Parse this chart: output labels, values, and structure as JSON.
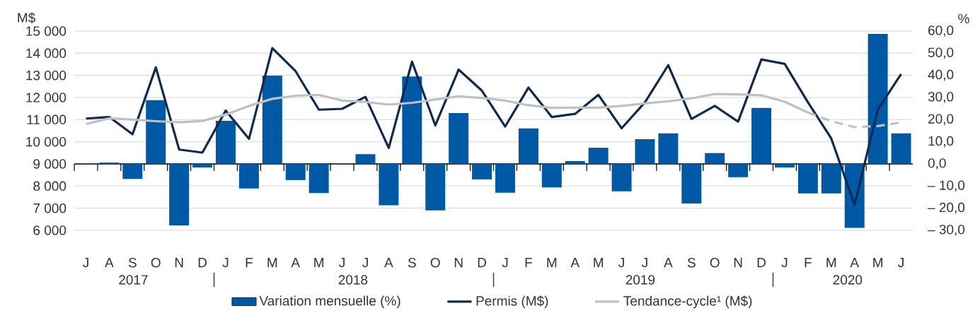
{
  "chart_data": {
    "type": "bar",
    "categories": [
      "J",
      "A",
      "S",
      "O",
      "N",
      "D",
      "J",
      "F",
      "M",
      "A",
      "M",
      "J",
      "J",
      "A",
      "S",
      "O",
      "N",
      "D",
      "J",
      "F",
      "M",
      "A",
      "M",
      "J",
      "J",
      "A",
      "S",
      "O",
      "N",
      "D",
      "J",
      "F",
      "M",
      "A",
      "M",
      "J"
    ],
    "x2lim": [
      "2017-07-01",
      "2020-07-01"
    ],
    "x2ticks": [
      {
        "value": "2017-09-17",
        "label": "2017"
      },
      {
        "value": "2018-01-01",
        "label": null
      },
      {
        "value": "2018-06-30",
        "label": "2018"
      },
      {
        "value": "2019-01-01",
        "label": null
      },
      {
        "value": "2019-07-10",
        "label": "2019"
      },
      {
        "value": "2020-01-01",
        "label": null
      },
      {
        "value": "2020-04-07",
        "label": "2020"
      }
    ],
    "ylabel": "M$",
    "y2label": "%",
    "ylim": [
      6000,
      15000
    ],
    "yticks": [
      {
        "value": 6000,
        "label": "6 000"
      },
      {
        "value": 7000,
        "label": "7 000"
      },
      {
        "value": 8000,
        "label": "8 000"
      },
      {
        "value": 9000,
        "label": "9 000"
      },
      {
        "value": 10000,
        "label": "10 000"
      },
      {
        "value": 11000,
        "label": "11 000"
      },
      {
        "value": 12000,
        "label": "12 000"
      },
      {
        "value": 13000,
        "label": "13 000"
      },
      {
        "value": 14000,
        "label": "14 000"
      },
      {
        "value": 15000,
        "label": "15 000"
      }
    ],
    "y2lim": [
      -30,
      60
    ],
    "y2ticks": [
      {
        "value": -30,
        "label": "– 30,0"
      },
      {
        "value": -20,
        "label": "– 20,0"
      },
      {
        "value": -10,
        "label": "– 10,0"
      },
      {
        "value": 0,
        "label": "0,0"
      },
      {
        "value": 10,
        "label": "10,0"
      },
      {
        "value": 20,
        "label": "20,0"
      },
      {
        "value": 30,
        "label": "30,0"
      },
      {
        "value": 40,
        "label": "40,0"
      },
      {
        "value": 50,
        "label": "50,0"
      },
      {
        "value": 60,
        "label": "60,0"
      }
    ],
    "grid": "y",
    "legend": "bottom",
    "series": [
      {
        "name": "Variation mensuelle (%)",
        "axis": "y2",
        "color": "#0059a4",
        "values": [
          0.3,
          0.6,
          -6.8,
          28.8,
          -27.8,
          -1.6,
          19.5,
          -11.1,
          39.9,
          -7.3,
          -13.2,
          0.3,
          4.4,
          -18.7,
          39.5,
          -21.0,
          23.0,
          -7.0,
          -13.0,
          16.0,
          -10.6,
          1.3,
          7.3,
          -12.4,
          11.2,
          13.8,
          -17.9,
          4.9,
          -6.0,
          25.3,
          -1.6,
          -13.3,
          -13.3,
          -28.9,
          58.7,
          13.8
        ]
      },
      {
        "name": "Permis (M$)",
        "type": "line",
        "color": "#0d2a52",
        "line_style": "solid",
        "values": [
          11050,
          11120,
          10340,
          13360,
          9650,
          9510,
          11410,
          10130,
          14230,
          13190,
          11450,
          11490,
          12030,
          9720,
          13620,
          10740,
          13260,
          12310,
          10690,
          12450,
          11120,
          11260,
          12120,
          10610,
          11780,
          13460,
          11030,
          11620,
          10910,
          13720,
          13520,
          11780,
          10150,
          7160,
          11460,
          13060
        ]
      },
      {
        "name": "Tendance-cycle¹ (M$)",
        "type": "line",
        "color": "#c0c0c0",
        "line_style": "solid",
        "values": [
          10800,
          11060,
          11000,
          10930,
          10880,
          10940,
          11230,
          11620,
          11940,
          12080,
          12120,
          11860,
          11800,
          11680,
          11760,
          11910,
          12050,
          11980,
          11860,
          11650,
          11530,
          11540,
          11540,
          11620,
          11730,
          11830,
          11960,
          12160,
          12140,
          12100,
          11810,
          11320,
          null,
          null,
          null,
          null
        ]
      },
      {
        "type": "line",
        "color": "#c0c0c0",
        "line_style": "dashed",
        "values": [
          null,
          null,
          null,
          null,
          null,
          null,
          null,
          null,
          null,
          null,
          null,
          null,
          null,
          null,
          null,
          null,
          null,
          null,
          null,
          null,
          null,
          null,
          null,
          null,
          null,
          null,
          null,
          null,
          null,
          null,
          null,
          11320,
          10930,
          10660,
          10710,
          10870
        ]
      }
    ]
  }
}
